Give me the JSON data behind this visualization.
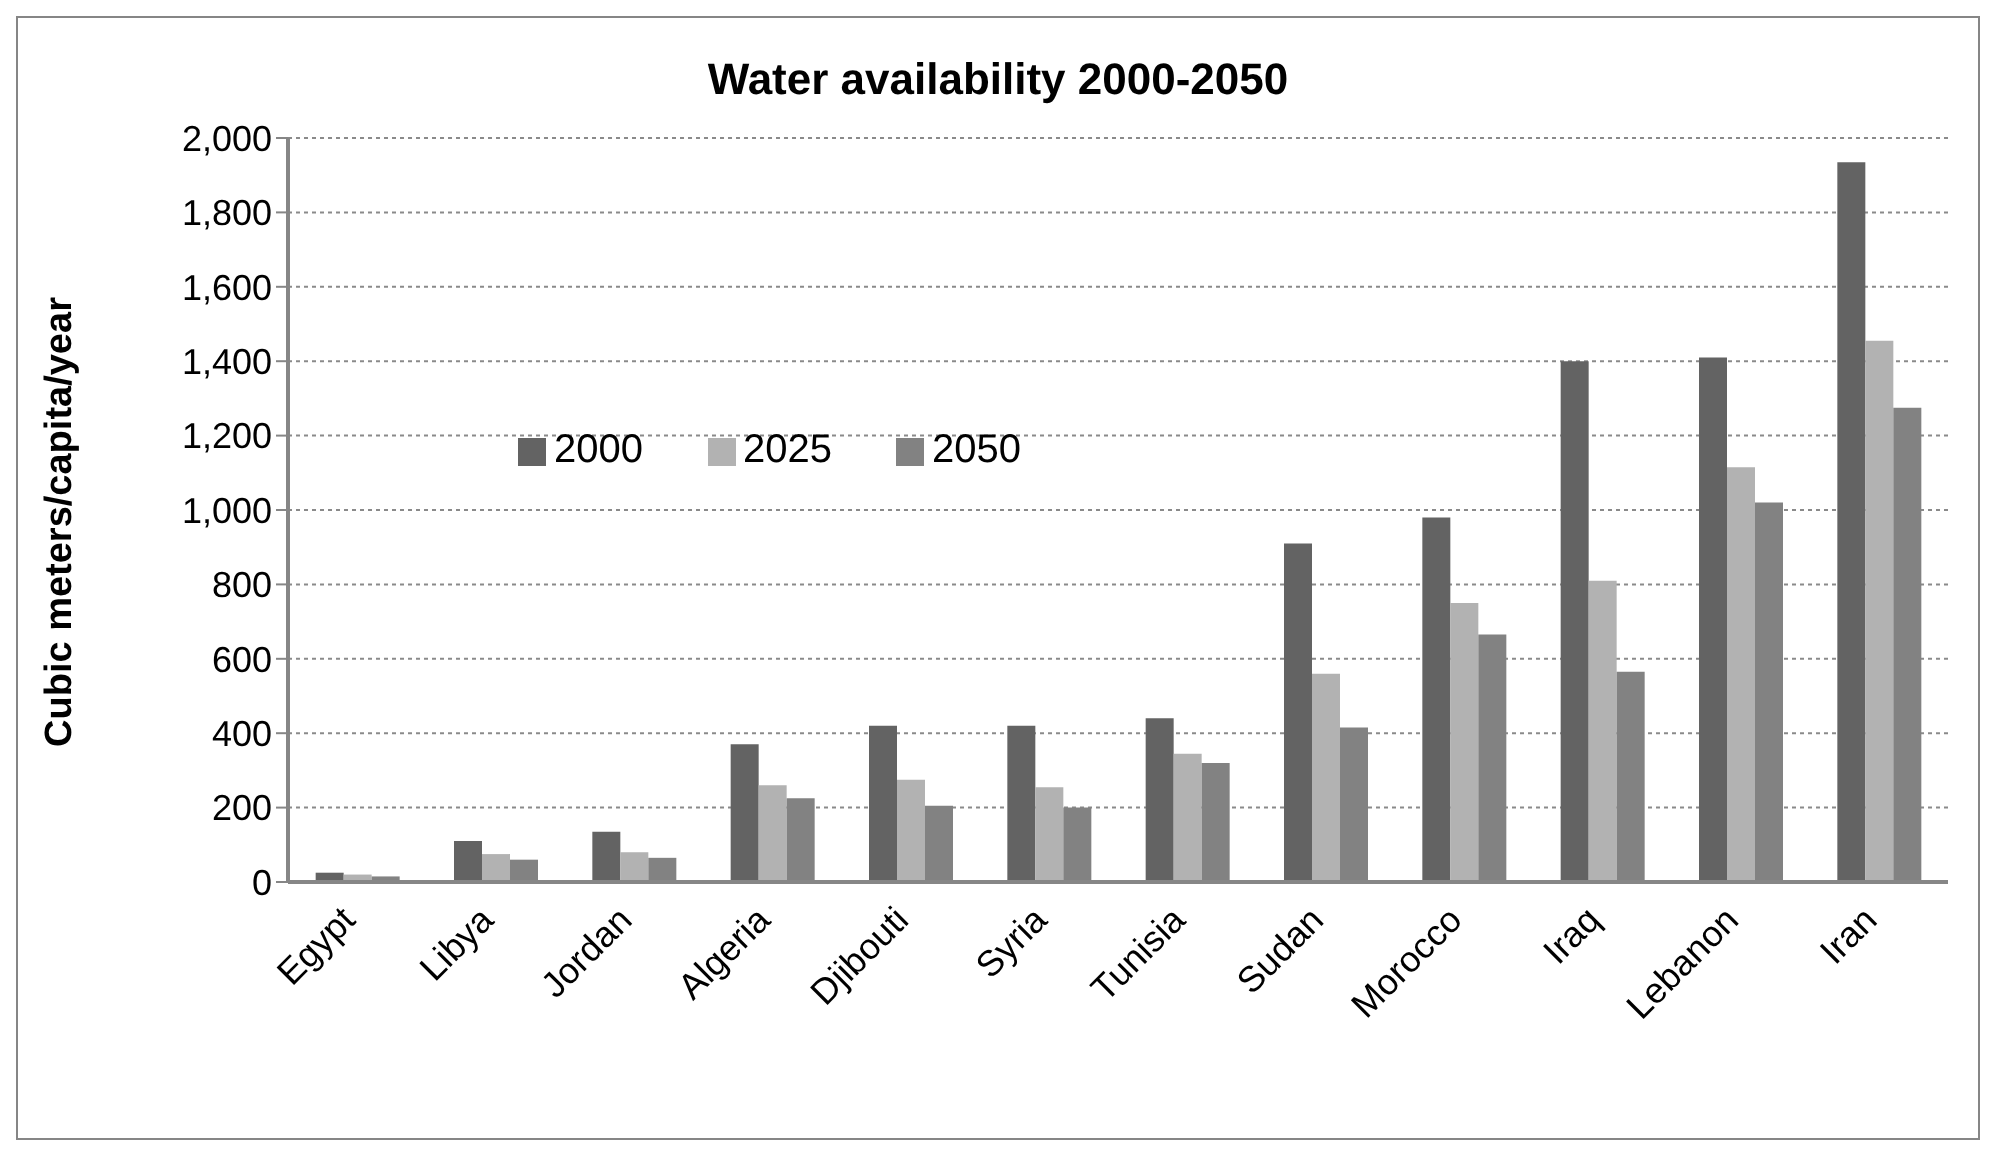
{
  "chart_data": {
    "type": "bar",
    "title": "Water availability 2000-2050",
    "ylabel": "Cubic meters/capita/year",
    "categories": [
      "Egypt",
      "Libya",
      "Jordan",
      "Algeria",
      "Djibouti",
      "Syria",
      "Tunisia",
      "Sudan",
      "Morocco",
      "Iraq",
      "Lebanon",
      "Iran"
    ],
    "series": [
      {
        "name": "2000",
        "color": "#636363",
        "values": [
          25,
          110,
          135,
          370,
          420,
          420,
          440,
          910,
          980,
          1400,
          1410,
          1935
        ]
      },
      {
        "name": "2025",
        "color": "#b2b2b2",
        "values": [
          20,
          75,
          80,
          260,
          275,
          255,
          345,
          560,
          750,
          810,
          1115,
          1455
        ]
      },
      {
        "name": "2050",
        "color": "#828282",
        "values": [
          15,
          60,
          65,
          225,
          205,
          200,
          320,
          415,
          665,
          565,
          1020,
          1275
        ]
      }
    ],
    "ylim": [
      0,
      2000
    ],
    "yticks": [
      0,
      200,
      400,
      600,
      800,
      {
        "value": 1000,
        "label": "1,000"
      },
      {
        "value": 1200,
        "label": "1,200"
      },
      {
        "value": 1400,
        "label": "1,400"
      },
      {
        "value": 1600,
        "label": "1,600"
      },
      {
        "value": 1800,
        "label": "1,800"
      },
      {
        "value": 2000,
        "label": "2,000"
      }
    ],
    "grid": "y",
    "legend": "left"
  }
}
